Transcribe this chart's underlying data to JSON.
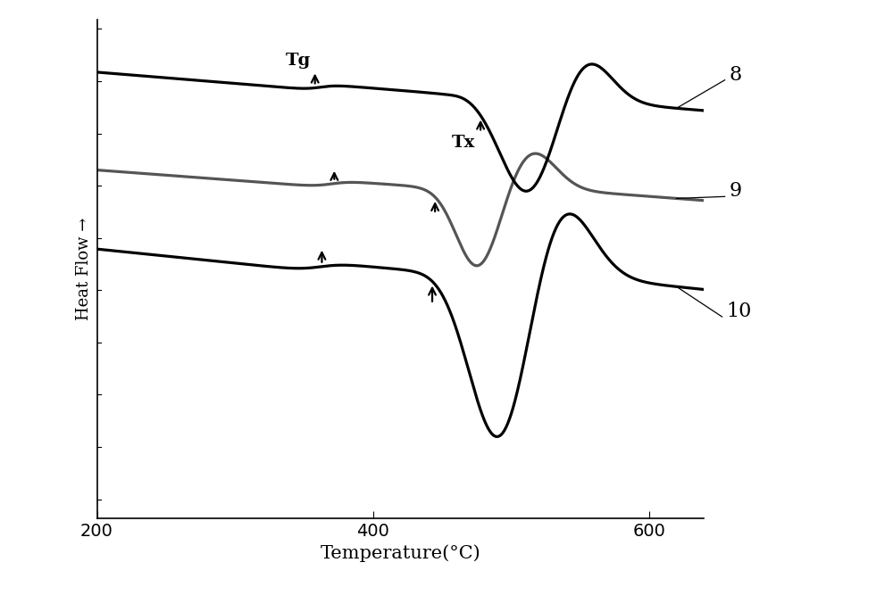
{
  "xlabel": "Temperature(°C)",
  "ylabel": "Heat Flow →",
  "xlim": [
    200,
    640
  ],
  "background_color": "#f5f5f5",
  "curve8_color": "#000000",
  "curve9_color": "#555555",
  "curve10_color": "#000000",
  "xlabel_fontsize": 15,
  "ylabel_fontsize": 13,
  "tick_fontsize": 14,
  "label_fontsize": 16,
  "annotation_fontsize": 14
}
